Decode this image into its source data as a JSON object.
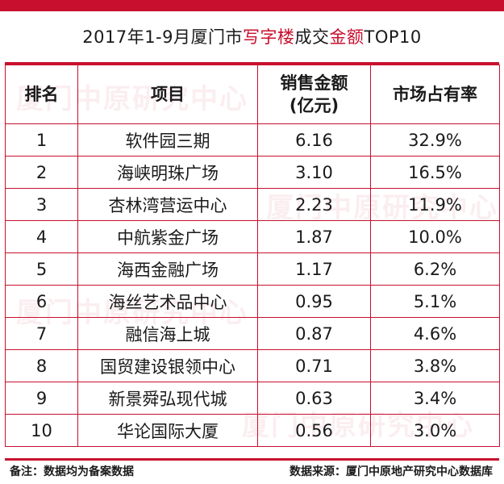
{
  "title": {
    "prefix": "2017年1-9月厦门市",
    "highlight1": "写字楼",
    "middle": "成交",
    "highlight2": "金额",
    "suffix": "TOP10"
  },
  "colors": {
    "accent": "#c8102e",
    "text": "#1a1a1a",
    "background": "#ffffff"
  },
  "table": {
    "headers": {
      "rank": "排名",
      "project": "项目",
      "sales_line1": "销售金额",
      "sales_line2": "(亿元)",
      "share": "市场占有率"
    },
    "rows": [
      {
        "rank": "1",
        "project": "软件园三期",
        "sales": "6.16",
        "share": "32.9%"
      },
      {
        "rank": "2",
        "project": "海峡明珠广场",
        "sales": "3.10",
        "share": "16.5%"
      },
      {
        "rank": "3",
        "project": "杏林湾营运中心",
        "sales": "2.23",
        "share": "11.9%"
      },
      {
        "rank": "4",
        "project": "中航紫金广场",
        "sales": "1.87",
        "share": "10.0%"
      },
      {
        "rank": "5",
        "project": "海西金融广场",
        "sales": "1.17",
        "share": "6.2%"
      },
      {
        "rank": "6",
        "project": "海丝艺术品中心",
        "sales": "0.95",
        "share": "5.1%"
      },
      {
        "rank": "7",
        "project": "融信海上城",
        "sales": "0.87",
        "share": "4.6%"
      },
      {
        "rank": "8",
        "project": "国贸建设银领中心",
        "sales": "0.71",
        "share": "3.8%"
      },
      {
        "rank": "9",
        "project": "新景舜弘现代城",
        "sales": "0.63",
        "share": "3.4%"
      },
      {
        "rank": "10",
        "project": "华论国际大厦",
        "sales": "0.56",
        "share": "3.0%"
      }
    ]
  },
  "footer": {
    "note": "备注：数据均为备案数据",
    "source": "数据来源：厦门中原地产研究中心数据库"
  },
  "watermark": {
    "text": "厦门中原研究中心"
  }
}
